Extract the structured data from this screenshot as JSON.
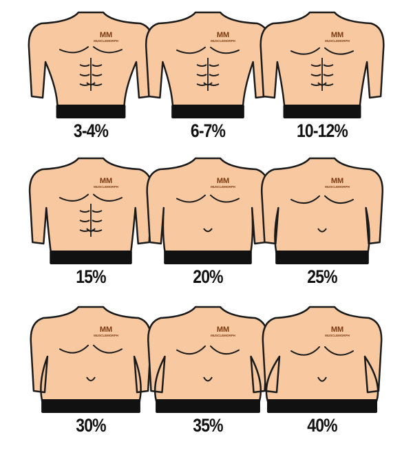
{
  "logo_text": "MUSCLEMORPH",
  "colors": {
    "skin": "#f8c8a0",
    "outline": "#1a1a1a",
    "shorts": "#111111",
    "logo": "#7a3a10"
  },
  "figures": [
    {
      "label": "3-4%",
      "percent": 3.5
    },
    {
      "label": "6-7%",
      "percent": 6.5
    },
    {
      "label": "10-12%",
      "percent": 11
    },
    {
      "label": "15%",
      "percent": 15
    },
    {
      "label": "20%",
      "percent": 20
    },
    {
      "label": "25%",
      "percent": 25
    },
    {
      "label": "30%",
      "percent": 30
    },
    {
      "label": "35%",
      "percent": 35
    },
    {
      "label": "40%",
      "percent": 40
    }
  ]
}
